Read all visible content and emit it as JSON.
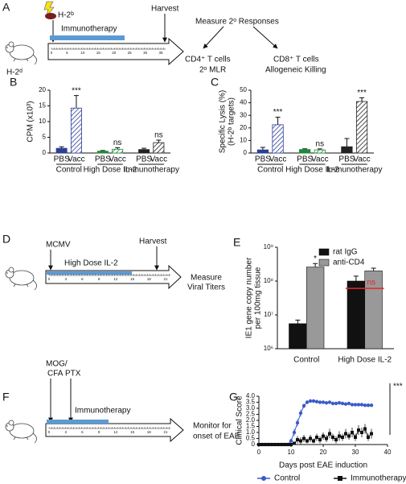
{
  "panel_labels": [
    "A",
    "B",
    "C",
    "D",
    "E",
    "F",
    "G"
  ],
  "diagrams": {
    "A": {
      "strain_donor": "H-2ᵇ",
      "treatment": "Immunotherapy",
      "harvest": "Harvest",
      "strain_host": "H-2ᵈ",
      "timeline_ticks": [
        0,
        5,
        10,
        15,
        20,
        25,
        30,
        35
      ],
      "measure": "Measure 2ᵒ Responses",
      "outcome_left": [
        "CD4⁺ T cells",
        "2ᵒ MLR"
      ],
      "outcome_right": [
        "CD8⁺ T cells",
        "Allogeneic Killing"
      ]
    },
    "D": {
      "infection": "MCMV",
      "treatment": "High Dose IL-2",
      "harvest": "Harvest",
      "timeline_ticks": [
        0,
        3,
        6,
        9,
        12,
        15,
        18,
        21
      ],
      "outcome": [
        "Measure",
        "Viral Titers"
      ]
    },
    "F": {
      "induction": [
        "MOG/",
        "CFA"
      ],
      "boost": "PTX",
      "treatment": "Immunotherapy",
      "timeline_ticks": [
        0,
        3,
        6,
        9,
        12,
        15,
        18,
        21
      ],
      "outcome": [
        "Monitor for",
        "onset of EAE"
      ]
    }
  },
  "chart_data": [
    {
      "type": "bar",
      "ylabel": [
        "CPM (x10³)"
      ],
      "categories": [
        "PBS",
        "Vacc",
        "PBS",
        "Vacc",
        "PBS",
        "Vacc"
      ],
      "groups": [
        "Control",
        "High Dose IL-2",
        "Immunotherapy"
      ],
      "values": [
        1.5,
        14.3,
        0.6,
        1.2,
        1.1,
        3.3
      ],
      "errors": [
        0.5,
        4.0,
        0.2,
        0.5,
        0.4,
        0.8
      ],
      "colors": [
        "#2b3f99",
        "#2b3f99",
        "#1e8a3c",
        "#1e8a3c",
        "#222222",
        "#222222"
      ],
      "hatched": [
        false,
        true,
        false,
        true,
        false,
        true
      ],
      "annotations": [
        null,
        "***",
        null,
        "ns",
        null,
        "ns"
      ],
      "ylim": [
        0,
        20
      ],
      "yticks": [
        0,
        5,
        10,
        15,
        20
      ]
    },
    {
      "type": "bar",
      "ylabel": [
        "Specific Lysis (%)",
        "(H-2ᵇ targets)"
      ],
      "categories": [
        "PBS",
        "Vacc",
        "PBS",
        "Vacc",
        "PBS",
        "Vacc"
      ],
      "groups": [
        "Control",
        "High Dose IL-2",
        "Immunotherapy"
      ],
      "values": [
        2.5,
        22.5,
        2.8,
        2.5,
        5,
        41
      ],
      "errors": [
        2,
        6,
        0.6,
        0.8,
        6.5,
        3
      ],
      "colors": [
        "#2b3f99",
        "#2b3f99",
        "#1e8a3c",
        "#1e8a3c",
        "#222222",
        "#222222"
      ],
      "hatched": [
        false,
        true,
        false,
        true,
        false,
        true
      ],
      "annotations": [
        null,
        "***",
        null,
        "ns",
        null,
        "***"
      ],
      "ylim": [
        0,
        50
      ],
      "yticks": [
        0,
        10,
        20,
        30,
        40,
        50
      ]
    },
    {
      "type": "bar",
      "log_scale": true,
      "ylabel": [
        "IE1 gene copy number",
        "per 100mg tissue"
      ],
      "categories": [
        "Control",
        "High Dose IL-2"
      ],
      "series": [
        {
          "name": "rat IgG",
          "color": "#111111",
          "values": [
            5500000,
            100000000
          ],
          "errors": [
            1500000,
            40000000
          ],
          "annotations": [
            null,
            null
          ]
        },
        {
          "name": "anti-CD4",
          "color": "#999999",
          "values": [
            260000000,
            200000000
          ],
          "errors": [
            70000000,
            40000000
          ],
          "annotations": [
            "*",
            null
          ]
        }
      ],
      "group_annotations": [
        null,
        "ns"
      ],
      "group_annotation_color": "#e8262b",
      "legend": "top",
      "ylim": [
        1000000,
        1000000000
      ],
      "yticks": [
        {
          "value": 1000000,
          "label": "10⁶"
        },
        {
          "value": 10000000,
          "label": "10⁷"
        },
        {
          "value": 100000000,
          "label": "10⁸"
        },
        {
          "value": 1000000000,
          "label": "10⁹"
        }
      ]
    },
    {
      "type": "line",
      "ylabel": [
        "Clinical Score"
      ],
      "xlabel": "Days post EAE induction",
      "x": [
        0,
        1,
        2,
        3,
        4,
        5,
        6,
        7,
        8,
        9,
        10,
        11,
        12,
        13,
        14,
        15,
        16,
        17,
        18,
        19,
        20,
        21,
        22,
        23,
        24,
        25,
        26,
        27,
        28,
        29,
        30,
        31,
        32,
        33,
        34,
        35
      ],
      "series": [
        {
          "name": "Control",
          "color": "#3a5bc7",
          "marker": "circle",
          "line": true,
          "values": [
            0,
            0,
            0,
            0,
            0,
            0,
            0,
            0,
            0,
            0,
            0.3,
            1.0,
            1.8,
            2.6,
            3.2,
            3.5,
            3.6,
            3.6,
            3.55,
            3.5,
            3.5,
            3.45,
            3.5,
            3.4,
            3.4,
            3.45,
            3.4,
            3.35,
            3.4,
            3.3,
            3.3,
            3.3,
            3.3,
            3.25,
            3.25,
            3.25
          ],
          "errors": [
            0,
            0,
            0,
            0,
            0,
            0,
            0,
            0,
            0,
            0,
            0.2,
            0.3,
            0.3,
            0.3,
            0.2,
            0.15,
            0.1,
            0.1,
            0.1,
            0.1,
            0.1,
            0.1,
            0.1,
            0.1,
            0.1,
            0.1,
            0.1,
            0.1,
            0.1,
            0.1,
            0.05,
            0.05,
            0.05,
            0.05,
            0.05,
            0.05
          ]
        },
        {
          "name": "Immunotherapy",
          "color": "#111111",
          "marker": "square",
          "line": true,
          "values": [
            0,
            0,
            0,
            0,
            0,
            0,
            0,
            0,
            0,
            0,
            0,
            0.1,
            0.4,
            0.3,
            0.5,
            0.3,
            0.5,
            0.3,
            0.6,
            0.4,
            0.7,
            0.5,
            0.9,
            0.6,
            0.4,
            0.7,
            0.6,
            0.9,
            0.7,
            1.0,
            0.6,
            1.2,
            1.0,
            1.3,
            0.6,
            0.9
          ],
          "errors": [
            0,
            0,
            0,
            0,
            0,
            0,
            0,
            0,
            0,
            0,
            0,
            0.1,
            0.3,
            0.3,
            0.3,
            0.2,
            0.3,
            0.2,
            0.3,
            0.3,
            0.3,
            0.3,
            0.4,
            0.3,
            0.3,
            0.4,
            0.3,
            0.4,
            0.3,
            0.4,
            0.3,
            0.4,
            0.4,
            0.4,
            0.3,
            0.4
          ]
        }
      ],
      "annotation": "***",
      "legend": "bottom",
      "xlim": [
        0,
        40
      ],
      "xticks": [
        0,
        10,
        20,
        30,
        40
      ],
      "ylim": [
        0,
        4
      ],
      "yticks": [
        0,
        0.5,
        {
          "value": 1,
          "label": "1.0"
        },
        1.5,
        {
          "value": 2,
          "label": "2.0"
        },
        2.5,
        {
          "value": 3,
          "label": "3.0"
        },
        3.5,
        {
          "value": 4,
          "label": "4.0"
        }
      ]
    }
  ]
}
